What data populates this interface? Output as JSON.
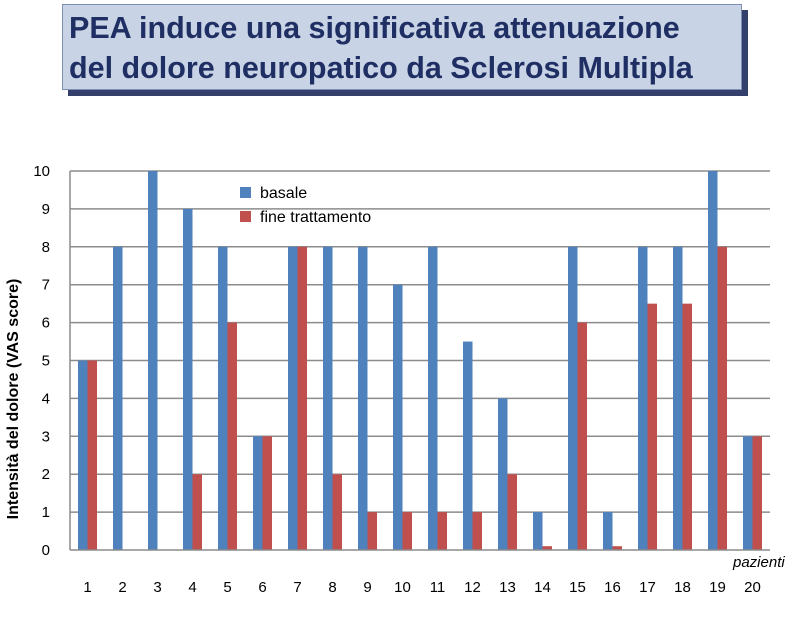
{
  "title": {
    "line1": "PEA induce una significativa attenuazione",
    "line2": "del dolore neuropatico da Sclerosi Multipla"
  },
  "colors": {
    "title_bg": "#c9d3e6",
    "title_text": "#1f2f63",
    "basale": "#4f81bd",
    "fine": "#c0504d",
    "grid": "#8c8c8c"
  },
  "chart_data": {
    "type": "bar",
    "title": "",
    "ylabel": "Intensità del dolore (VAS score)",
    "xlabel": "pazienti",
    "ylim": [
      0,
      10
    ],
    "yticks": [
      0,
      1,
      2,
      3,
      4,
      5,
      6,
      7,
      8,
      9,
      10
    ],
    "grid": true,
    "legend_position": "top-center",
    "categories": [
      "1",
      "2",
      "3",
      "4",
      "5",
      "6",
      "7",
      "8",
      "9",
      "10",
      "11",
      "12",
      "13",
      "14",
      "15",
      "16",
      "17",
      "18",
      "19",
      "20"
    ],
    "series": [
      {
        "name": "basale",
        "color": "#4f81bd",
        "values": [
          5,
          8,
          10,
          9,
          8,
          3,
          8,
          8,
          8,
          7,
          8,
          5.5,
          4,
          1,
          8,
          1,
          8,
          8,
          10,
          3
        ]
      },
      {
        "name": "fine trattamento",
        "color": "#c0504d",
        "values": [
          5,
          0,
          0,
          2,
          6,
          3,
          8,
          2,
          1,
          1,
          1,
          1,
          2,
          0.1,
          6,
          0.1,
          6.5,
          6.5,
          8,
          3
        ]
      }
    ]
  }
}
